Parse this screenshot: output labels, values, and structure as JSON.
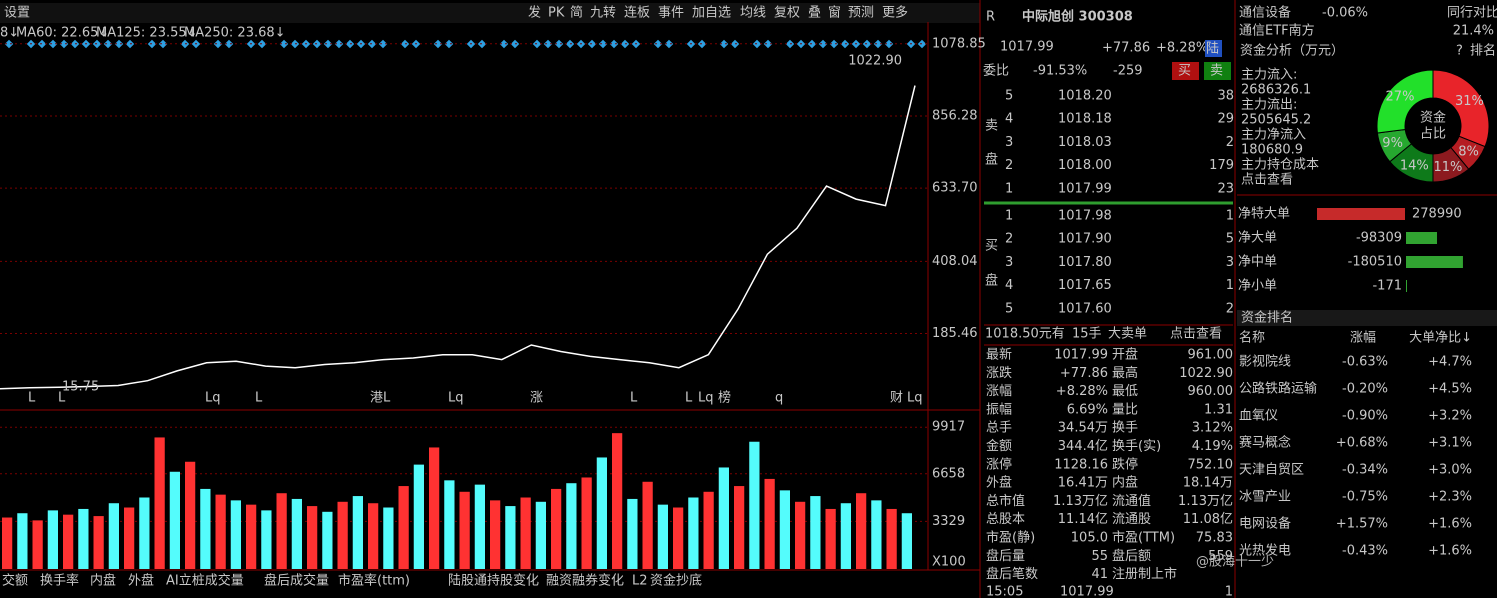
{
  "toolbar": {
    "settings": "设置",
    "buttons": [
      "发",
      "PK",
      "简",
      "九转",
      "连板",
      "事件",
      "加自选",
      "均线",
      "复权",
      "叠",
      "窗",
      "预测",
      "更多"
    ]
  },
  "ma_labels": [
    "8↓",
    "MA60: 22.65↓",
    "MA125: 23.55↓",
    "MA250: 23.68↓"
  ],
  "price_notes": {
    "high": "1022.90",
    "low": "15.75"
  },
  "events": [
    "L",
    "L",
    "Lq",
    "L",
    "港L",
    "Lq",
    "涨",
    "L",
    "L",
    "Lq",
    "榜",
    "q",
    "财",
    "Lq"
  ],
  "chart_data": [
    {
      "type": "line",
      "color": "#ffffff",
      "grid": true,
      "ylim": [
        -35,
        1146
      ],
      "yticks": [
        185.46,
        408.04,
        {
          "value": 633.7,
          "label": "633.70"
        },
        856.28,
        1078.85
      ],
      "values": [
        15,
        18,
        20,
        22,
        25,
        40,
        70,
        95,
        100,
        85,
        80,
        90,
        95,
        105,
        110,
        120,
        120,
        105,
        150,
        130,
        115,
        105,
        95,
        80,
        120,
        260,
        430,
        510,
        640,
        600,
        580,
        950
      ]
    },
    {
      "type": "bar",
      "colors": [
        "#ff3232",
        "#54fcfc"
      ],
      "ylim": [
        0,
        10560
      ],
      "yticks": [
        3329,
        6658,
        9917
      ],
      "unit": "X100",
      "values": [
        3600,
        3900,
        3400,
        4100,
        3800,
        4200,
        3700,
        4600,
        4300,
        5000,
        9200,
        6800,
        7500,
        5600,
        5200,
        4800,
        4500,
        4100,
        5300,
        4900,
        4400,
        4000,
        4700,
        5100,
        4600,
        4300,
        5800,
        7300,
        8500,
        6200,
        5400,
        5900,
        4800,
        4400,
        5000,
        4700,
        5600,
        6000,
        6400,
        7800,
        9500,
        4900,
        6100,
        4500,
        4300,
        5000,
        5400,
        7100,
        5800,
        8900,
        6300,
        5500,
        4700,
        5100,
        4200,
        4600,
        5300,
        4800,
        4200,
        3900
      ]
    },
    {
      "type": "pie",
      "center_label": [
        "资金",
        "占比"
      ],
      "values": [
        31,
        8,
        11,
        14,
        9,
        27
      ],
      "value_labels": [
        "31%",
        "8%",
        "11%",
        "14%",
        "9%",
        "27%"
      ],
      "colors": [
        "#e8242a",
        "#b51d22",
        "#8c1a1f",
        "#0e7a1a",
        "#26a82f",
        "#22e02a"
      ]
    },
    {
      "type": "hbar",
      "categories": [
        "净特大单",
        "净大单",
        "净中单",
        "净小单"
      ],
      "values": [
        278990,
        -98309,
        -180510,
        -171
      ],
      "colors": [
        "#c62a2a",
        "#31a331"
      ]
    }
  ],
  "quote": {
    "r": "R",
    "name": "中际旭创 300308",
    "price": "1017.99",
    "change": "+77.86",
    "pct": "+8.28%",
    "tag": "陆",
    "ratio_label": "委比",
    "ratio": "-91.53%",
    "diff": "-259",
    "buy": "买",
    "sell": "卖"
  },
  "book": {
    "sell_label": [
      "卖",
      "盘"
    ],
    "buy_label": [
      "买",
      "盘"
    ],
    "sell": [
      [
        "5",
        "1018.20",
        "38"
      ],
      [
        "4",
        "1018.18",
        "29"
      ],
      [
        "3",
        "1018.03",
        "2"
      ],
      [
        "2",
        "1018.00",
        "179"
      ],
      [
        "1",
        "1017.99",
        "23"
      ]
    ],
    "buy": [
      [
        "1",
        "1017.98",
        "1"
      ],
      [
        "2",
        "1017.90",
        "5"
      ],
      [
        "3",
        "1017.80",
        "3"
      ],
      [
        "4",
        "1017.65",
        "1"
      ],
      [
        "5",
        "1017.60",
        "2"
      ]
    ]
  },
  "big_order": [
    "1018.50元有",
    "15手",
    "大卖单",
    "点击查看"
  ],
  "stats": [
    [
      "最新",
      "1017.99",
      "开盘",
      "961.00"
    ],
    [
      "涨跌",
      "+77.86",
      "最高",
      "1022.90"
    ],
    [
      "涨幅",
      "+8.28%",
      "最低",
      "960.00"
    ],
    [
      "振幅",
      "6.69%",
      "量比",
      "1.31"
    ],
    [
      "总手",
      "34.54万",
      "换手",
      "3.12%"
    ],
    [
      "金额",
      "344.4亿",
      "换手(实)",
      "4.19%"
    ],
    [
      "涨停",
      "1128.16",
      "跌停",
      "752.10"
    ],
    [
      "外盘",
      "16.41万",
      "内盘",
      "18.14万"
    ],
    [
      "总市值",
      "1.13万亿",
      "流通值",
      "1.13万亿"
    ],
    [
      "总股本",
      "11.14亿",
      "流通股",
      "11.08亿"
    ],
    [
      "市盈(静)",
      "105.0",
      "市盈(TTM)",
      "75.83"
    ],
    [
      "盘后量",
      "55",
      "盘后额",
      "559"
    ],
    [
      "盘后笔数",
      "41",
      "注册制上市",
      ""
    ]
  ],
  "last": [
    "15:05",
    "1017.99",
    "1"
  ],
  "tabs": [
    "交额",
    "换手率",
    "内盘",
    "外盘",
    "AI立桩成交量",
    "盘后成交量",
    "市盈率(ttm)",
    "陆股通持股变化",
    "融资融券变化",
    "L2",
    "资金抄底"
  ],
  "sector": {
    "name": "通信设备",
    "pct": "-0.06%",
    "compare": "同行对比",
    "etf": "通信ETF南方",
    "etf_pct": "21.4%"
  },
  "funds": {
    "title": "资金分析（万元）",
    "help": "?",
    "rank": "排名",
    "lines": [
      "主力流入:",
      "2686326.1",
      "主力流出:",
      "2505645.2",
      "主力净流入",
      "180680.9",
      "主力持仓成本",
      "点击查看"
    ]
  },
  "ranking": {
    "title": "资金排名",
    "header": [
      "名称",
      "涨幅",
      "大单净比↓"
    ],
    "rows": [
      [
        "影视院线",
        "-0.63%",
        "+4.7%"
      ],
      [
        "公路铁路运输",
        "-0.20%",
        "+4.5%"
      ],
      [
        "血氧仪",
        "-0.90%",
        "+3.2%"
      ],
      [
        "赛马概念",
        "+0.68%",
        "+3.1%"
      ],
      [
        "天津自贸区",
        "-0.34%",
        "+3.0%"
      ],
      [
        "冰雪产业",
        "-0.75%",
        "+2.3%"
      ],
      [
        "电网设备",
        "+1.57%",
        "+1.6%"
      ],
      [
        "光热发电",
        "-0.43%",
        "+1.6%"
      ]
    ]
  },
  "watermark": "@股海十一少"
}
